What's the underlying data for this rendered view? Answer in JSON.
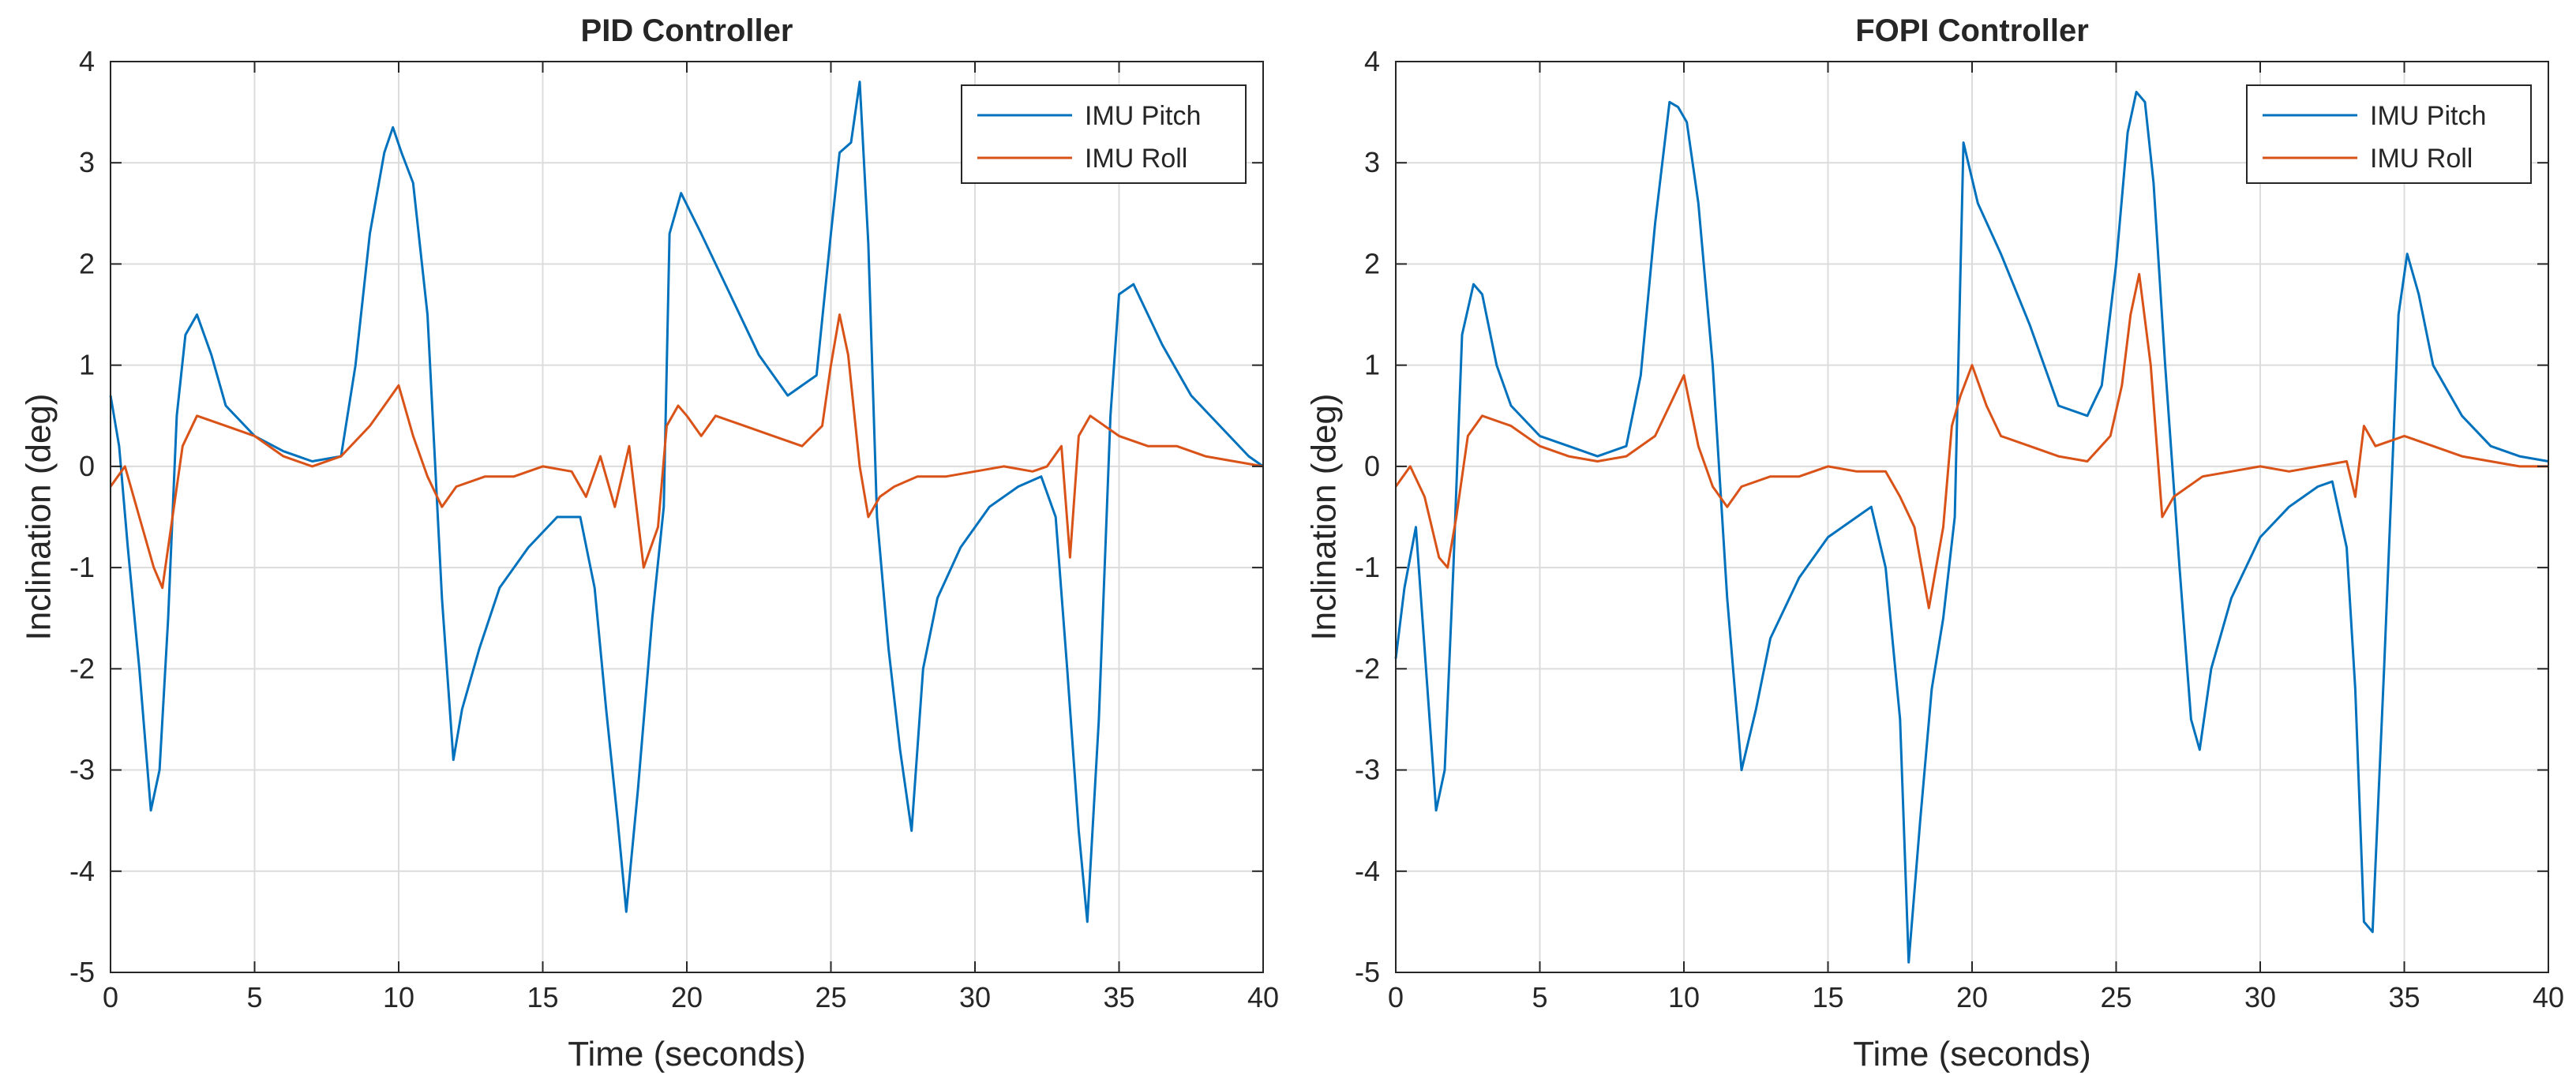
{
  "chart_data": [
    {
      "type": "line",
      "title": "PID Controller",
      "xlabel": "Time (seconds)",
      "ylabel": "Inclination (deg)",
      "xlim": [
        0,
        40
      ],
      "ylim": [
        -5,
        4
      ],
      "xticks": [
        "0",
        "5",
        "10",
        "15",
        "20",
        "25",
        "30",
        "35",
        "40"
      ],
      "yticks": [
        "-5",
        "-4",
        "-3",
        "-2",
        "-1",
        "0",
        "1",
        "2",
        "3",
        "4"
      ],
      "grid": true,
      "legend_position": "top-right",
      "series": [
        {
          "name": "IMU Pitch",
          "color": "#0072BD",
          "x": [
            0,
            0.3,
            0.6,
            1.0,
            1.4,
            1.7,
            2.0,
            2.3,
            2.6,
            3.0,
            3.5,
            4.0,
            5.0,
            6.0,
            7.0,
            8.0,
            8.5,
            9.0,
            9.5,
            9.8,
            10.1,
            10.5,
            11.0,
            11.5,
            11.9,
            12.2,
            12.8,
            13.5,
            14.5,
            15.5,
            16.3,
            16.8,
            17.2,
            17.6,
            17.9,
            18.3,
            18.8,
            19.2,
            19.4,
            19.8,
            20.5,
            21.5,
            22.5,
            23.5,
            24.5,
            25.0,
            25.3,
            25.7,
            26.0,
            26.3,
            26.6,
            27.0,
            27.4,
            27.8,
            28.2,
            28.7,
            29.5,
            30.5,
            31.5,
            32.3,
            32.8,
            33.2,
            33.6,
            33.9,
            34.3,
            34.7,
            35.0,
            35.5,
            36.5,
            37.5,
            38.5,
            39.5,
            40.0
          ],
          "y": [
            0.7,
            0.2,
            -0.8,
            -2.0,
            -3.4,
            -3.0,
            -1.5,
            0.5,
            1.3,
            1.5,
            1.1,
            0.6,
            0.3,
            0.15,
            0.05,
            0.1,
            1.0,
            2.3,
            3.1,
            3.35,
            3.1,
            2.8,
            1.5,
            -1.3,
            -2.9,
            -2.4,
            -1.8,
            -1.2,
            -0.8,
            -0.5,
            -0.5,
            -1.2,
            -2.4,
            -3.5,
            -4.4,
            -3.2,
            -1.5,
            -0.4,
            2.3,
            2.7,
            2.3,
            1.7,
            1.1,
            0.7,
            0.9,
            2.3,
            3.1,
            3.2,
            3.8,
            2.2,
            -0.5,
            -1.8,
            -2.8,
            -3.6,
            -2.0,
            -1.3,
            -0.8,
            -0.4,
            -0.2,
            -0.1,
            -0.5,
            -2.0,
            -3.6,
            -4.5,
            -2.5,
            0.5,
            1.7,
            1.8,
            1.2,
            0.7,
            0.4,
            0.1,
            0.0
          ]
        },
        {
          "name": "IMU Roll",
          "color": "#D95319",
          "x": [
            0,
            0.5,
            1.0,
            1.5,
            1.8,
            2.1,
            2.5,
            3.0,
            4.0,
            5.0,
            6.0,
            7.0,
            8.0,
            9.0,
            9.5,
            10.0,
            10.5,
            11.0,
            11.5,
            12.0,
            13.0,
            14.0,
            15.0,
            16.0,
            16.5,
            17.0,
            17.5,
            18.0,
            18.5,
            19.0,
            19.3,
            19.7,
            20.0,
            20.5,
            21.0,
            22.0,
            23.0,
            24.0,
            24.7,
            25.0,
            25.3,
            25.6,
            26.0,
            26.3,
            26.7,
            27.2,
            28.0,
            29.0,
            30.0,
            31.0,
            32.0,
            32.5,
            33.0,
            33.3,
            33.6,
            34.0,
            35.0,
            36.0,
            37.0,
            38.0,
            39.0,
            40.0
          ],
          "y": [
            -0.2,
            0.0,
            -0.5,
            -1.0,
            -1.2,
            -0.6,
            0.2,
            0.5,
            0.4,
            0.3,
            0.1,
            0.0,
            0.1,
            0.4,
            0.6,
            0.8,
            0.3,
            -0.1,
            -0.4,
            -0.2,
            -0.1,
            -0.1,
            0.0,
            -0.05,
            -0.3,
            0.1,
            -0.4,
            0.2,
            -1.0,
            -0.6,
            0.4,
            0.6,
            0.5,
            0.3,
            0.5,
            0.4,
            0.3,
            0.2,
            0.4,
            1.0,
            1.5,
            1.1,
            0.0,
            -0.5,
            -0.3,
            -0.2,
            -0.1,
            -0.1,
            -0.05,
            0.0,
            -0.05,
            0.0,
            0.2,
            -0.9,
            0.3,
            0.5,
            0.3,
            0.2,
            0.2,
            0.1,
            0.05,
            0.0
          ]
        }
      ]
    },
    {
      "type": "line",
      "title": "FOPI Controller",
      "xlabel": "Time (seconds)",
      "ylabel": "Inclination (deg)",
      "xlim": [
        0,
        40
      ],
      "ylim": [
        -5,
        4
      ],
      "xticks": [
        "0",
        "5",
        "10",
        "15",
        "20",
        "25",
        "30",
        "35",
        "40"
      ],
      "yticks": [
        "-5",
        "-4",
        "-3",
        "-2",
        "-1",
        "0",
        "1",
        "2",
        "3",
        "4"
      ],
      "grid": true,
      "legend_position": "top-right",
      "series": [
        {
          "name": "IMU Pitch",
          "color": "#0072BD",
          "x": [
            0,
            0.3,
            0.7,
            1.0,
            1.4,
            1.7,
            2.0,
            2.3,
            2.7,
            3.0,
            3.5,
            4.0,
            5.0,
            6.0,
            7.0,
            8.0,
            8.5,
            9.0,
            9.5,
            9.8,
            10.1,
            10.5,
            11.0,
            11.5,
            12.0,
            12.5,
            13.0,
            14.0,
            15.0,
            16.0,
            16.5,
            17.0,
            17.5,
            17.8,
            18.2,
            18.6,
            19.0,
            19.4,
            19.7,
            20.2,
            21.0,
            22.0,
            23.0,
            24.0,
            24.5,
            25.0,
            25.4,
            25.7,
            26.0,
            26.3,
            26.7,
            27.2,
            27.6,
            27.9,
            28.3,
            29.0,
            30.0,
            31.0,
            32.0,
            32.5,
            33.0,
            33.3,
            33.6,
            33.9,
            34.3,
            34.8,
            35.1,
            35.5,
            36.0,
            37.0,
            38.0,
            39.0,
            40.0
          ],
          "y": [
            -1.9,
            -1.2,
            -0.6,
            -1.8,
            -3.4,
            -3.0,
            -1.0,
            1.3,
            1.8,
            1.7,
            1.0,
            0.6,
            0.3,
            0.2,
            0.1,
            0.2,
            0.9,
            2.4,
            3.6,
            3.55,
            3.4,
            2.6,
            1.0,
            -1.3,
            -3.0,
            -2.4,
            -1.7,
            -1.1,
            -0.7,
            -0.5,
            -0.4,
            -1.0,
            -2.5,
            -4.9,
            -3.5,
            -2.2,
            -1.5,
            -0.5,
            3.2,
            2.6,
            2.1,
            1.4,
            0.6,
            0.5,
            0.8,
            2.0,
            3.3,
            3.7,
            3.6,
            2.8,
            1.0,
            -1.0,
            -2.5,
            -2.8,
            -2.0,
            -1.3,
            -0.7,
            -0.4,
            -0.2,
            -0.15,
            -0.8,
            -2.2,
            -4.5,
            -4.6,
            -2.0,
            1.5,
            2.1,
            1.7,
            1.0,
            0.5,
            0.2,
            0.1,
            0.05
          ]
        },
        {
          "name": "IMU Roll",
          "color": "#D95319",
          "x": [
            0,
            0.5,
            1.0,
            1.5,
            1.8,
            2.1,
            2.5,
            3.0,
            4.0,
            5.0,
            6.0,
            7.0,
            8.0,
            9.0,
            9.5,
            10.0,
            10.5,
            11.0,
            11.5,
            12.0,
            13.0,
            14.0,
            15.0,
            16.0,
            17.0,
            17.5,
            18.0,
            18.5,
            19.0,
            19.3,
            19.6,
            20.0,
            20.5,
            21.0,
            22.0,
            23.0,
            24.0,
            24.8,
            25.2,
            25.5,
            25.8,
            26.2,
            26.6,
            27.0,
            28.0,
            29.0,
            30.0,
            31.0,
            32.0,
            33.0,
            33.3,
            33.6,
            34.0,
            35.0,
            36.0,
            37.0,
            38.0,
            39.0,
            40.0
          ],
          "y": [
            -0.2,
            0.0,
            -0.3,
            -0.9,
            -1.0,
            -0.5,
            0.3,
            0.5,
            0.4,
            0.2,
            0.1,
            0.05,
            0.1,
            0.3,
            0.6,
            0.9,
            0.2,
            -0.2,
            -0.4,
            -0.2,
            -0.1,
            -0.1,
            0.0,
            -0.05,
            -0.05,
            -0.3,
            -0.6,
            -1.4,
            -0.6,
            0.4,
            0.7,
            1.0,
            0.6,
            0.3,
            0.2,
            0.1,
            0.05,
            0.3,
            0.8,
            1.5,
            1.9,
            1.0,
            -0.5,
            -0.3,
            -0.1,
            -0.05,
            0.0,
            -0.05,
            0.0,
            0.05,
            -0.3,
            0.4,
            0.2,
            0.3,
            0.2,
            0.1,
            0.05,
            0.0,
            0.0
          ]
        }
      ]
    }
  ]
}
